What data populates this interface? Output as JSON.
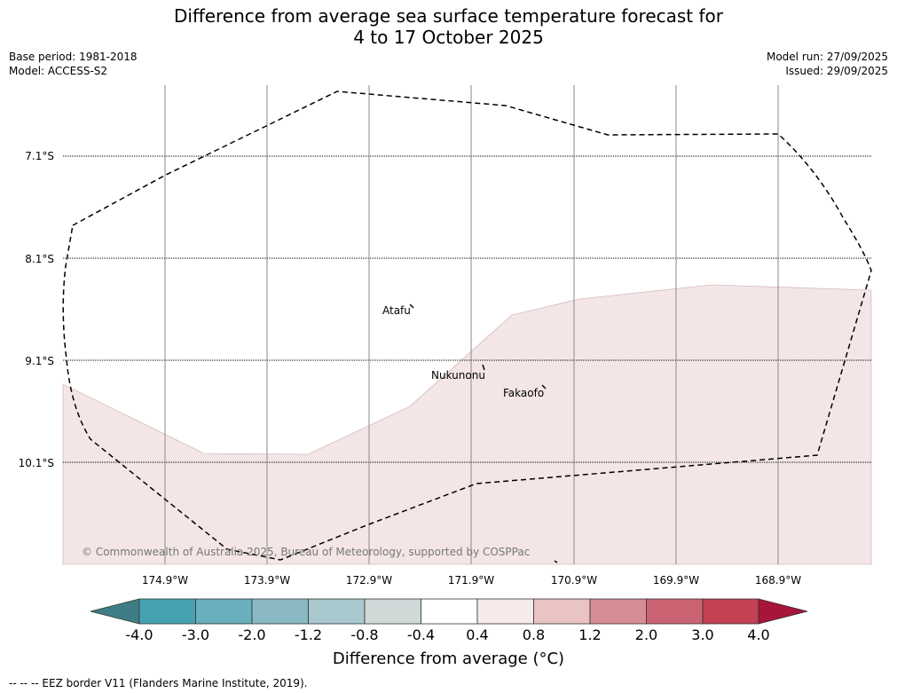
{
  "title": {
    "line1": "Difference from average sea surface temperature forecast for",
    "line2": "4 to 17 October 2025"
  },
  "meta": {
    "base_period": "Base period: 1981-2018",
    "model": "Model: ACCESS-S2",
    "model_run": "Model run: 27/09/2025",
    "issued": "Issued: 29/09/2025"
  },
  "map": {
    "lat_labels": [
      "7.1°S",
      "8.1°S",
      "9.1°S",
      "10.1°S"
    ],
    "lon_labels": [
      "174.9°W",
      "173.9°W",
      "172.9°W",
      "171.9°W",
      "170.9°W",
      "169.9°W",
      "168.9°W"
    ],
    "places": [
      "Atafu",
      "Nukunonu",
      "Fakaofo"
    ],
    "copyright": "© Commonwealth of Australia 2025, Bureau of Meteorology, supported by COSPPac",
    "anomaly_region_class": "0.4 to 0.8",
    "anomaly_fill_color": "#f4e6e6",
    "background_class": "-0.4 to 0.4"
  },
  "colorbar": {
    "title": "Difference from average (°C)",
    "tick_labels": [
      "-4.0",
      "-3.0",
      "-2.0",
      "-1.2",
      "-0.8",
      "-0.4",
      "0.4",
      "0.8",
      "1.2",
      "2.0",
      "3.0",
      "4.0"
    ],
    "colors": [
      "#3f7d86",
      "#46a2b2",
      "#6aafbd",
      "#8bb9c3",
      "#a9c9ce",
      "#d0d8d8",
      "#ffffff",
      "#f6eaea",
      "#e9c4c2",
      "#d68d95",
      "#cb6472",
      "#c24153",
      "#a8153a"
    ]
  },
  "footnote": "--  --  -- EEZ border V11 (Flanders Marine Institute, 2019)."
}
